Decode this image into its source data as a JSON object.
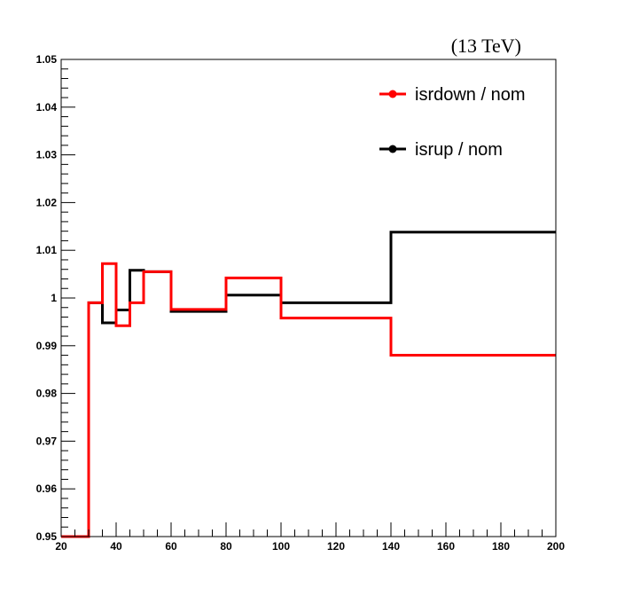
{
  "header": {
    "energy_label": "(13 TeV)"
  },
  "chart_data": {
    "type": "line",
    "step": true,
    "xlim": [
      20,
      200
    ],
    "ylim": [
      0.95,
      1.05
    ],
    "x_ticks": [
      20,
      40,
      60,
      80,
      100,
      120,
      140,
      160,
      180,
      200
    ],
    "y_ticks": [
      0.95,
      0.96,
      0.97,
      0.98,
      0.99,
      1,
      1.01,
      1.02,
      1.03,
      1.04,
      1.05
    ],
    "x_tick_labels": [
      "20",
      "40",
      "60",
      "80",
      "100",
      "120",
      "140",
      "160",
      "180",
      "200"
    ],
    "y_tick_labels": [
      "0.95",
      "0.96",
      "0.97",
      "0.98",
      "0.99",
      "1",
      "1.01",
      "1.02",
      "1.03",
      "1.04",
      "1.05"
    ],
    "bin_edges": [
      20,
      30,
      35,
      40,
      45,
      50,
      60,
      80,
      100,
      140,
      200
    ],
    "legend_position": "top-right",
    "series": [
      {
        "name": "isrdown / nom",
        "color": "#ff0000",
        "values": [
          0.95,
          0.999,
          1.0072,
          0.9942,
          0.999,
          1.0055,
          0.9976,
          1.0042,
          0.9958,
          0.988
        ]
      },
      {
        "name": "isrup / nom",
        "color": "#000000",
        "values": [
          0.95,
          0.999,
          0.9948,
          0.9975,
          1.0058,
          1.0055,
          0.9972,
          1.0006,
          0.999,
          1.0138
        ]
      }
    ],
    "grid": false
  }
}
